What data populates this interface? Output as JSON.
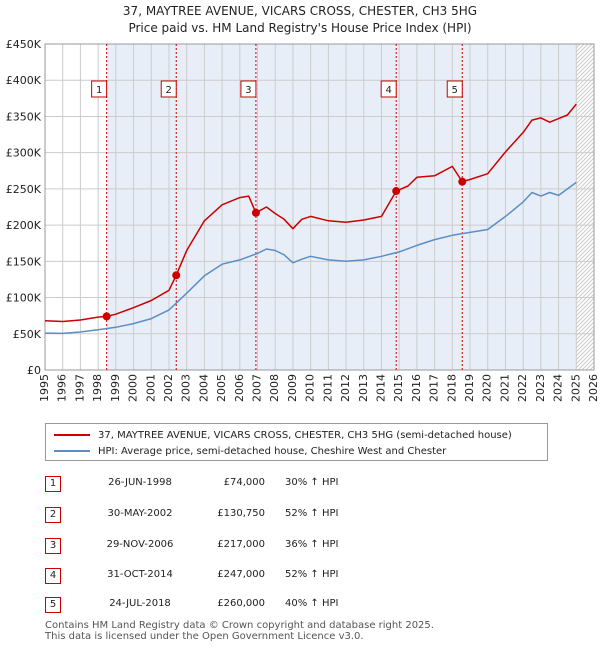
{
  "header": {
    "title_line1": "37, MAYTREE AVENUE, VICARS CROSS, CHESTER, CH3 5HG",
    "title_line2": "Price paid vs. HM Land Registry's House Price Index (HPI)"
  },
  "chart_data": {
    "type": "line",
    "title": "37, MAYTREE AVENUE, VICARS CROSS, CHESTER, CH3 5HG — Price paid vs. HM Land Registry's House Price Index (HPI)",
    "xlabel": "",
    "ylabel": "",
    "xlim": [
      1995,
      2026
    ],
    "ylim": [
      0,
      450000
    ],
    "x_ticks": [
      1995,
      1996,
      1997,
      1998,
      1999,
      2000,
      2001,
      2002,
      2003,
      2004,
      2005,
      2006,
      2007,
      2008,
      2009,
      2010,
      2011,
      2012,
      2013,
      2014,
      2015,
      2016,
      2017,
      2018,
      2019,
      2020,
      2021,
      2022,
      2023,
      2024,
      2025,
      2026
    ],
    "y_ticks": [
      0,
      50000,
      100000,
      150000,
      200000,
      250000,
      300000,
      350000,
      400000,
      450000
    ],
    "y_tick_labels": [
      "£0",
      "£50K",
      "£100K",
      "£150K",
      "£200K",
      "£250K",
      "£300K",
      "£350K",
      "£400K",
      "£450K"
    ],
    "grid": true,
    "forecast_from": 2025.0,
    "series": [
      {
        "name": "37, MAYTREE AVENUE, VICARS CROSS, CHESTER, CH3 5HG (semi-detached house)",
        "color": "#cc0000",
        "x": [
          1995.0,
          1996.0,
          1997.0,
          1998.0,
          1998.48,
          1999.0,
          2000.0,
          2001.0,
          2002.0,
          2002.41,
          2003.0,
          2004.0,
          2005.0,
          2006.0,
          2006.5,
          2006.91,
          2007.5,
          2008.0,
          2008.5,
          2009.0,
          2009.5,
          2010.0,
          2011.0,
          2012.0,
          2013.0,
          2014.0,
          2014.83,
          2015.5,
          2016.0,
          2017.0,
          2018.0,
          2018.56,
          2019.0,
          2020.0,
          2021.0,
          2022.0,
          2022.5,
          2023.0,
          2023.5,
          2024.0,
          2024.5,
          2025.0
        ],
        "values": [
          68000,
          67000,
          69000,
          73000,
          74000,
          77000,
          86000,
          96000,
          110000,
          130750,
          165000,
          206000,
          228000,
          238000,
          240000,
          217000,
          225000,
          216000,
          208000,
          195000,
          208000,
          212000,
          206000,
          204000,
          207000,
          212000,
          247000,
          254000,
          266000,
          268000,
          281000,
          260000,
          263000,
          271000,
          301000,
          328000,
          345000,
          348000,
          342000,
          347000,
          352000,
          367000
        ]
      },
      {
        "name": "HPI: Average price, semi-detached house, Cheshire West and Chester",
        "color": "#5b8ec6",
        "x": [
          1995.0,
          1996.0,
          1997.0,
          1998.0,
          1999.0,
          2000.0,
          2001.0,
          2002.0,
          2003.0,
          2004.0,
          2005.0,
          2006.0,
          2007.0,
          2007.5,
          2008.0,
          2008.5,
          2009.0,
          2009.5,
          2010.0,
          2011.0,
          2012.0,
          2013.0,
          2014.0,
          2015.0,
          2016.0,
          2017.0,
          2018.0,
          2019.0,
          2020.0,
          2021.0,
          2022.0,
          2022.5,
          2023.0,
          2023.5,
          2024.0,
          2025.0
        ],
        "values": [
          51000,
          50500,
          52500,
          55500,
          59000,
          64000,
          71000,
          83000,
          106000,
          130000,
          146000,
          152000,
          161000,
          167000,
          165000,
          159000,
          148000,
          153000,
          157000,
          152000,
          150000,
          152000,
          157000,
          163000,
          172000,
          180000,
          186000,
          190000,
          194000,
          212000,
          232000,
          245000,
          240000,
          245000,
          241000,
          259000
        ]
      }
    ],
    "sales": [
      {
        "id": "1",
        "x": 1998.48,
        "value": 74000
      },
      {
        "id": "2",
        "x": 2002.41,
        "value": 130750
      },
      {
        "id": "3",
        "x": 2006.91,
        "value": 217000
      },
      {
        "id": "4",
        "x": 2014.83,
        "value": 247000
      },
      {
        "id": "5",
        "x": 2018.56,
        "value": 260000
      }
    ]
  },
  "legend": {
    "property_label": "37, MAYTREE AVENUE, VICARS CROSS, CHESTER, CH3 5HG (semi-detached house)",
    "hpi_label": "HPI: Average price, semi-detached house, Cheshire West and Chester"
  },
  "transactions": [
    {
      "num": "1",
      "date": "26-JUN-1998",
      "price": "£74,000",
      "hpi": "30% ↑ HPI"
    },
    {
      "num": "2",
      "date": "30-MAY-2002",
      "price": "£130,750",
      "hpi": "52% ↑ HPI"
    },
    {
      "num": "3",
      "date": "29-NOV-2006",
      "price": "£217,000",
      "hpi": "36% ↑ HPI"
    },
    {
      "num": "4",
      "date": "31-OCT-2014",
      "price": "£247,000",
      "hpi": "52% ↑ HPI"
    },
    {
      "num": "5",
      "date": "24-JUL-2018",
      "price": "£260,000",
      "hpi": "40% ↑ HPI"
    }
  ],
  "footer": {
    "line1": "Contains HM Land Registry data © Crown copyright and database right 2025.",
    "line2": "This data is licensed under the Open Government Licence v3.0."
  }
}
